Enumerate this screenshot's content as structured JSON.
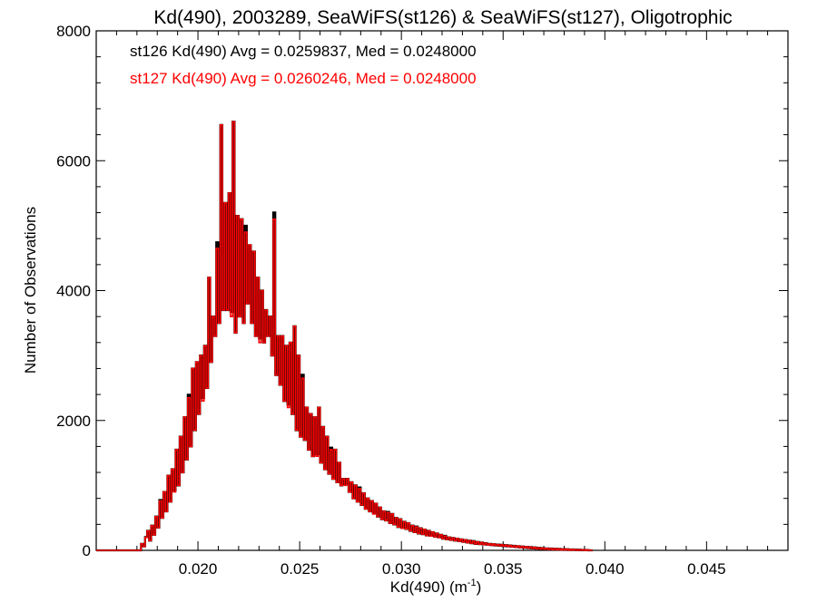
{
  "chart_data": {
    "type": "line",
    "title": "Kd(490), 2003289, SeaWiFS(st126) & SeaWiFS(st127), Oligotrophic",
    "xlabel_main": "Kd(490) (m",
    "xlabel_sup": "-1",
    "xlabel_close": ")",
    "ylabel": "Number of Observations",
    "xlim": [
      0.015,
      0.049
    ],
    "ylim": [
      0,
      8000
    ],
    "xticks": [
      0.02,
      0.025,
      0.03,
      0.035,
      0.04,
      0.045
    ],
    "xtick_labels": [
      "0.020",
      "0.025",
      "0.030",
      "0.035",
      "0.040",
      "0.045"
    ],
    "yticks": [
      0,
      2000,
      4000,
      6000,
      8000
    ],
    "ytick_labels": [
      "0",
      "2000",
      "4000",
      "6000",
      "8000"
    ],
    "annotations": [
      "st126 Kd(490) Avg = 0.0259837, Med = 0.0248000",
      "st127 Kd(490) Avg = 0.0260246, Med = 0.0248000"
    ],
    "histogram": {
      "x_start": 0.015,
      "bin_width": 0.0001,
      "values": [
        0,
        0,
        0,
        0,
        0,
        0,
        0,
        0,
        0,
        0,
        0,
        0,
        0,
        0,
        0,
        0,
        0,
        0,
        0,
        0,
        0,
        0,
        100,
        60,
        200,
        300,
        150,
        380,
        240,
        520,
        350,
        760,
        500,
        900,
        600,
        1150,
        750,
        1250,
        900,
        1550,
        1000,
        1750,
        1200,
        2050,
        1400,
        2350,
        1600,
        2800,
        1850,
        2900,
        2100,
        3000,
        2300,
        3150,
        2500,
        4200,
        2900,
        3600,
        3300,
        4650,
        3500,
        6550,
        3700,
        5350,
        3700,
        5500,
        3600,
        6600,
        3350,
        5150,
        3600,
        5100,
        3500,
        4900,
        3800,
        4700,
        3500,
        4600,
        3300,
        4200,
        3200,
        4000,
        3200,
        3700,
        3300,
        3600,
        3000,
        5100,
        2700,
        3300,
        2550,
        3300,
        2300,
        3150,
        2200,
        3200,
        2100,
        3450,
        1850,
        3000,
        1750,
        2650,
        1700,
        2200,
        1550,
        2100,
        1450,
        2050,
        1450,
        2200,
        1350,
        1900,
        1250,
        1750,
        1180,
        1550,
        1100,
        1550,
        1050,
        1350,
        1000,
        1100,
        1000,
        1100,
        900,
        1050,
        800,
        1000,
        750,
        950,
        700,
        880,
        640,
        800,
        600,
        760,
        560,
        720,
        520,
        660,
        480,
        600,
        460,
        580,
        420,
        560,
        400,
        500,
        360,
        480,
        340,
        440,
        330,
        420,
        300,
        380,
        280,
        360,
        260,
        340,
        250,
        320,
        230,
        300,
        220,
        280,
        210,
        260,
        200,
        240,
        180,
        220,
        170,
        200,
        160,
        190,
        150,
        180,
        140,
        170,
        130,
        160,
        120,
        150,
        110,
        140,
        100,
        130,
        95,
        120,
        90,
        110,
        85,
        100,
        80,
        95,
        75,
        90,
        70,
        85,
        65,
        80,
        60,
        75,
        55,
        70,
        50,
        65,
        45,
        60,
        40,
        55,
        35,
        50,
        30,
        45,
        25,
        40,
        20,
        35,
        18,
        30,
        15,
        28,
        12,
        25,
        10,
        22,
        8,
        20,
        6,
        18,
        5,
        15,
        4,
        12,
        3,
        10,
        2,
        8,
        1,
        6,
        0,
        0
      ],
      "series": [
        {
          "name": "st126",
          "color": "#000000"
        },
        {
          "name": "st127",
          "color": "#ff0000"
        }
      ]
    }
  }
}
